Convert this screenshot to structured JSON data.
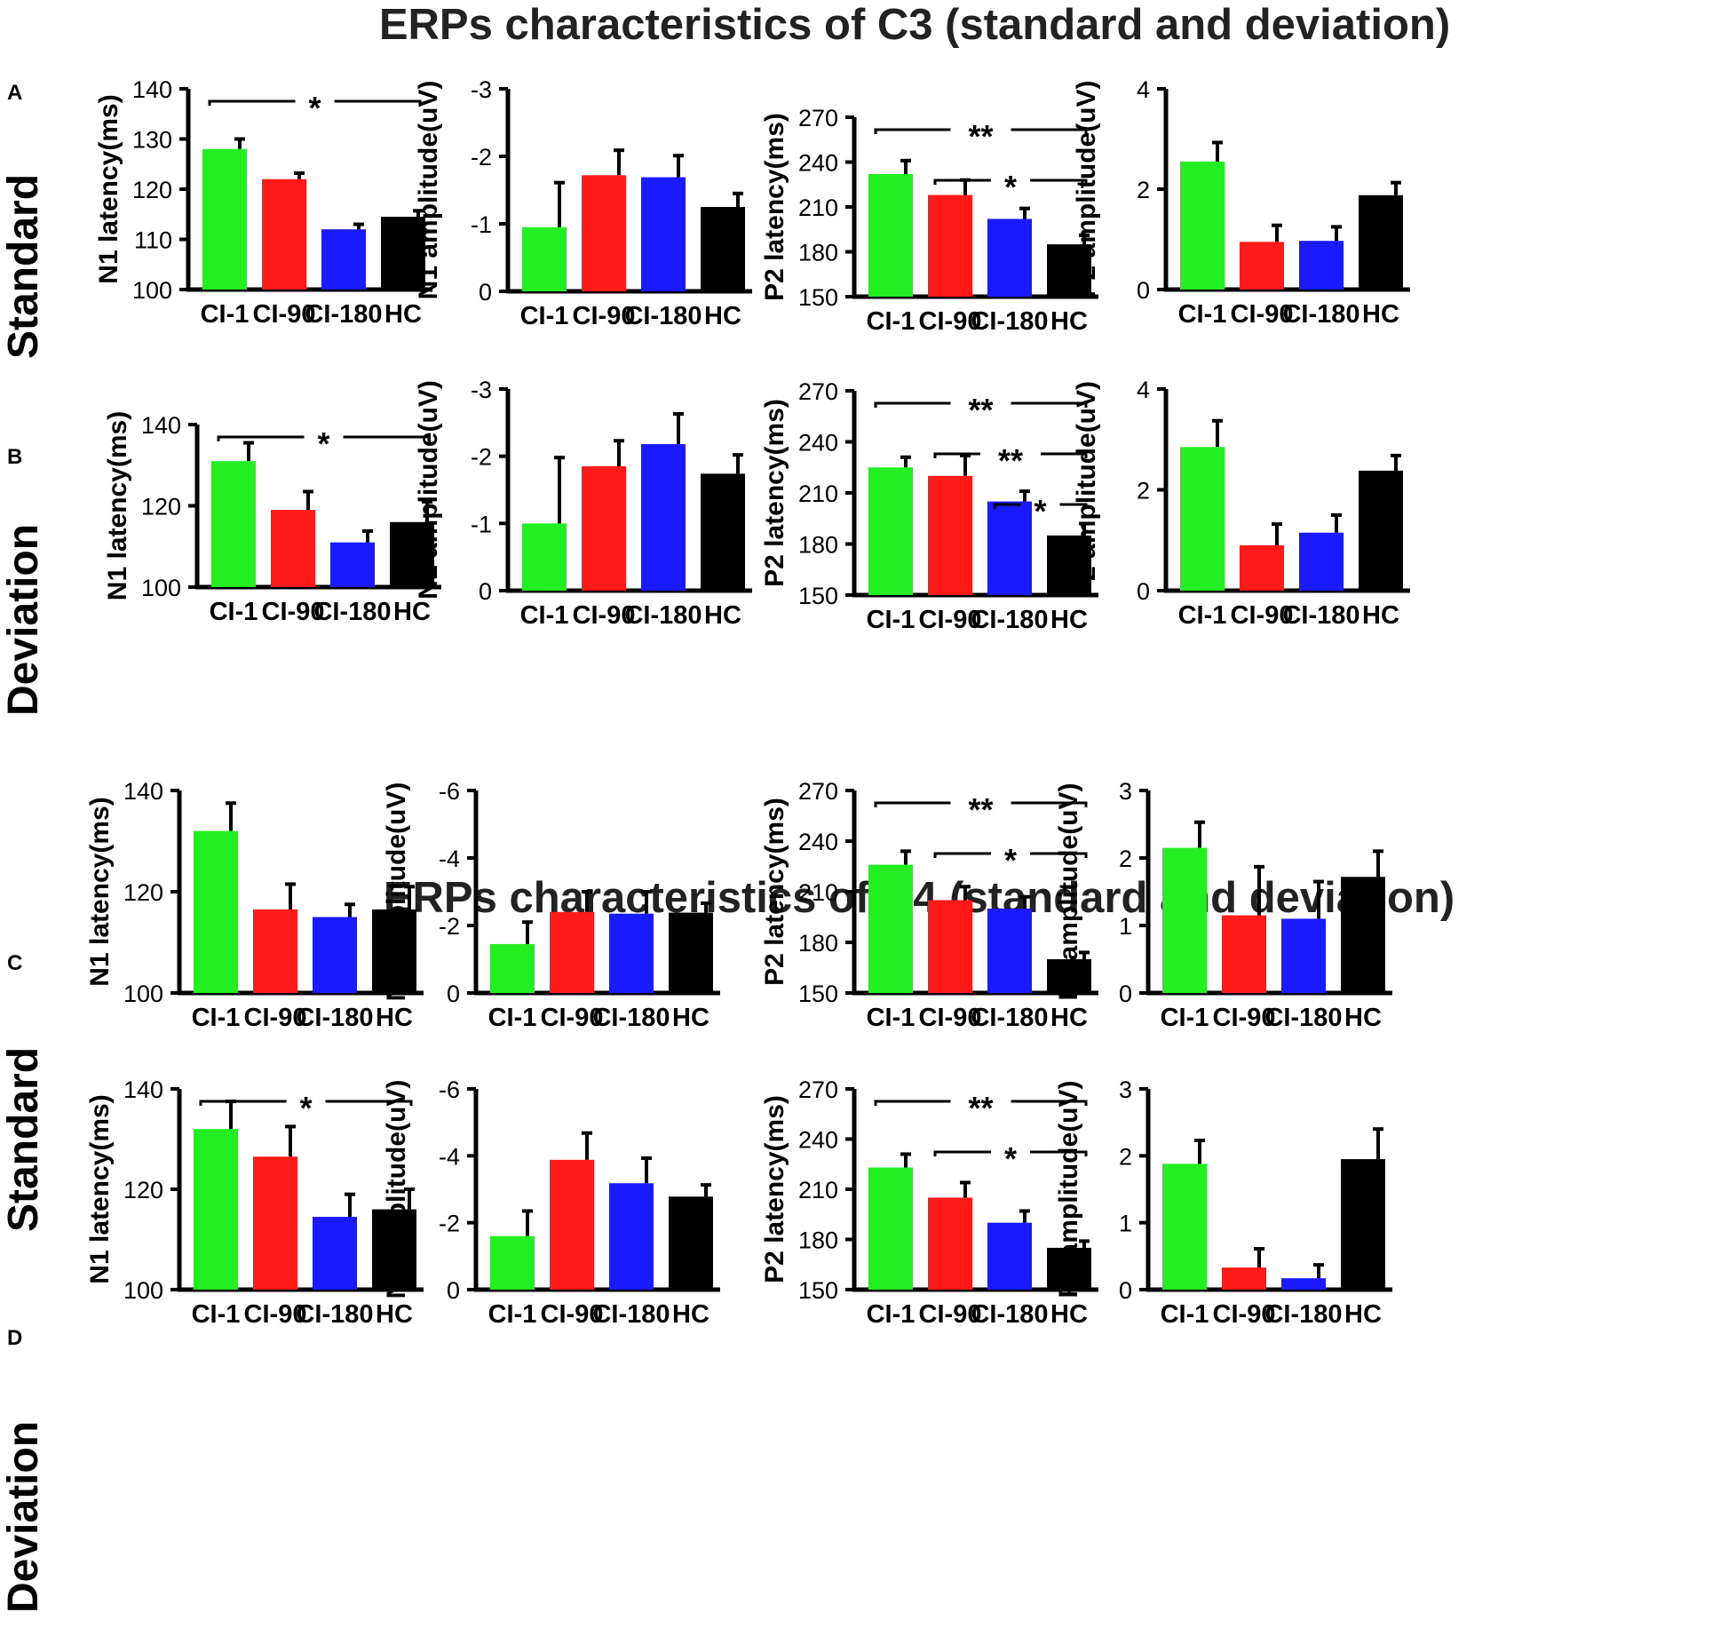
{
  "figure": {
    "section_titles": [
      "ERPs characteristics of C3 (standard and deviation)",
      "ERPs characteristics of C4 (standard and deviation)"
    ],
    "panel_letters": [
      "A",
      "B",
      "C",
      "D"
    ],
    "row_labels": [
      "Standard",
      "Deviation",
      "Standard",
      "Deviation"
    ],
    "groups": [
      "CI-1",
      "CI-90",
      "CI-180",
      "HC"
    ],
    "colors": {
      "CI-1": "#22ee22",
      "CI-90": "#ff1a1a",
      "CI-180": "#1a1aff",
      "HC": "#000000"
    }
  },
  "chart_data": [
    {
      "type": "bar",
      "row": "A",
      "title": "",
      "xlabel": "",
      "ylabel": "N1 latency(ms)",
      "categories": [
        "CI-1",
        "CI-90",
        "CI-180",
        "HC"
      ],
      "values": [
        128,
        122,
        112,
        114.5
      ],
      "errors": [
        2,
        1.2,
        1,
        1.2
      ],
      "ylim": [
        100,
        140
      ],
      "yticks": [
        100,
        110,
        120,
        130,
        140
      ],
      "yticklabels": [
        "100",
        "110",
        "120",
        "130",
        "140"
      ],
      "inverted": false,
      "significance": [
        {
          "from": "CI-1",
          "to": "HC",
          "label": "*"
        }
      ]
    },
    {
      "type": "bar",
      "row": "A",
      "title": "",
      "xlabel": "",
      "ylabel": "N1 amplitude(uV)",
      "categories": [
        "CI-1",
        "CI-90",
        "CI-180",
        "HC"
      ],
      "values": [
        -0.95,
        -1.72,
        -1.69,
        -1.25
      ],
      "errors": [
        0.66,
        0.37,
        0.32,
        0.2
      ],
      "ylim": [
        0,
        -3
      ],
      "yticks": [
        0,
        -1,
        -2,
        -3
      ],
      "yticklabels": [
        "0",
        "-1",
        "-2",
        "-3"
      ],
      "inverted": true,
      "significance": []
    },
    {
      "type": "bar",
      "row": "A",
      "title": "",
      "xlabel": "",
      "ylabel": "P2 latency(ms)",
      "categories": [
        "CI-1",
        "CI-90",
        "CI-180",
        "HC"
      ],
      "values": [
        232,
        218,
        202,
        185
      ],
      "errors": [
        9,
        10,
        7,
        6
      ],
      "ylim": [
        150,
        270
      ],
      "yticks": [
        150,
        180,
        210,
        240,
        270
      ],
      "yticklabels": [
        "150",
        "180",
        "210",
        "240",
        "270"
      ],
      "inverted": false,
      "significance": [
        {
          "from": "CI-1",
          "to": "HC",
          "label": "**"
        },
        {
          "from": "CI-90",
          "to": "HC",
          "label": "*"
        }
      ]
    },
    {
      "type": "bar",
      "row": "A",
      "title": "",
      "xlabel": "",
      "ylabel": "P2 amplitude(uV)",
      "categories": [
        "CI-1",
        "CI-90",
        "CI-180",
        "HC"
      ],
      "values": [
        2.55,
        0.95,
        0.97,
        1.88
      ],
      "errors": [
        0.38,
        0.33,
        0.28,
        0.25
      ],
      "ylim": [
        0,
        4
      ],
      "yticks": [
        0,
        2,
        4
      ],
      "yticklabels": [
        "0",
        "2",
        "4"
      ],
      "inverted": false,
      "significance": []
    },
    {
      "type": "bar",
      "row": "B",
      "title": "",
      "xlabel": "",
      "ylabel": "N1 latency(ms)",
      "categories": [
        "CI-1",
        "CI-90",
        "CI-180",
        "HC"
      ],
      "values": [
        131,
        119,
        111,
        116
      ],
      "errors": [
        4.5,
        4.5,
        2.8,
        5
      ],
      "ylim": [
        100,
        140
      ],
      "yticks": [
        100,
        120,
        140
      ],
      "yticklabels": [
        "100",
        "120",
        "140"
      ],
      "inverted": false,
      "significance": [
        {
          "from": "CI-1",
          "to": "HC",
          "label": "*"
        }
      ]
    },
    {
      "type": "bar",
      "row": "B",
      "title": "",
      "xlabel": "",
      "ylabel": "N1 amplitude(uV)",
      "categories": [
        "CI-1",
        "CI-90",
        "CI-180",
        "HC"
      ],
      "values": [
        -1.0,
        -1.85,
        -2.18,
        -1.74
      ],
      "errors": [
        0.98,
        0.38,
        0.45,
        0.28
      ],
      "ylim": [
        0,
        -3
      ],
      "yticks": [
        0,
        -1,
        -2,
        -3
      ],
      "yticklabels": [
        "0",
        "-1",
        "-2",
        "-3"
      ],
      "inverted": true,
      "significance": []
    },
    {
      "type": "bar",
      "row": "B",
      "title": "",
      "xlabel": "",
      "ylabel": "P2 latency(ms)",
      "categories": [
        "CI-1",
        "CI-90",
        "CI-180",
        "HC"
      ],
      "values": [
        225,
        220,
        205,
        185
      ],
      "errors": [
        6,
        12,
        6,
        7
      ],
      "ylim": [
        150,
        270
      ],
      "yticks": [
        150,
        180,
        210,
        240,
        270
      ],
      "yticklabels": [
        "150",
        "180",
        "210",
        "240",
        "270"
      ],
      "inverted": false,
      "significance": [
        {
          "from": "CI-1",
          "to": "HC",
          "label": "**"
        },
        {
          "from": "CI-90",
          "to": "HC",
          "label": "**"
        },
        {
          "from": "CI-180",
          "to": "HC",
          "label": "*"
        }
      ]
    },
    {
      "type": "bar",
      "row": "B",
      "title": "",
      "xlabel": "",
      "ylabel": "P2 amplitude(uV)",
      "categories": [
        "CI-1",
        "CI-90",
        "CI-180",
        "HC"
      ],
      "values": [
        2.85,
        0.9,
        1.15,
        2.38
      ],
      "errors": [
        0.52,
        0.42,
        0.35,
        0.3
      ],
      "ylim": [
        0,
        4
      ],
      "yticks": [
        0,
        2,
        4
      ],
      "yticklabels": [
        "0",
        "2",
        "4"
      ],
      "inverted": false,
      "significance": []
    },
    {
      "type": "bar",
      "row": "C",
      "title": "",
      "xlabel": "",
      "ylabel": "N1 latency(ms)",
      "categories": [
        "CI-1",
        "CI-90",
        "CI-180",
        "HC"
      ],
      "values": [
        132,
        116.5,
        115,
        116.5
      ],
      "errors": [
        5.5,
        5,
        2.5,
        4.5
      ],
      "ylim": [
        100,
        140
      ],
      "yticks": [
        100,
        120,
        140
      ],
      "yticklabels": [
        "100",
        "120",
        "140"
      ],
      "inverted": false,
      "significance": []
    },
    {
      "type": "bar",
      "row": "C",
      "title": "",
      "xlabel": "",
      "ylabel": "N1 amplitude(uV)",
      "categories": [
        "CI-1",
        "CI-90",
        "CI-180",
        "HC"
      ],
      "values": [
        -1.45,
        -2.4,
        -2.35,
        -2.38
      ],
      "errors": [
        0.65,
        0.6,
        0.65,
        0.28
      ],
      "ylim": [
        0,
        -6
      ],
      "yticks": [
        0,
        -2,
        -4,
        -6
      ],
      "yticklabels": [
        "0",
        "-2",
        "-4",
        "-6"
      ],
      "inverted": true,
      "significance": []
    },
    {
      "type": "bar",
      "row": "C",
      "title": "",
      "xlabel": "",
      "ylabel": "P2 latency(ms)",
      "categories": [
        "CI-1",
        "CI-90",
        "CI-180",
        "HC"
      ],
      "values": [
        226,
        205,
        200,
        170
      ],
      "errors": [
        8,
        8,
        7,
        4
      ],
      "ylim": [
        150,
        270
      ],
      "yticks": [
        150,
        180,
        210,
        240,
        270
      ],
      "yticklabels": [
        "150",
        "180",
        "210",
        "240",
        "270"
      ],
      "inverted": false,
      "significance": [
        {
          "from": "CI-1",
          "to": "HC",
          "label": "**"
        },
        {
          "from": "CI-90",
          "to": "HC",
          "label": "*"
        }
      ]
    },
    {
      "type": "bar",
      "row": "C",
      "title": "",
      "xlabel": "",
      "ylabel": "P2 amplitude(uV)",
      "categories": [
        "CI-1",
        "CI-90",
        "CI-180",
        "HC"
      ],
      "values": [
        2.15,
        1.15,
        1.1,
        1.72
      ],
      "errors": [
        0.38,
        0.72,
        0.55,
        0.38
      ],
      "ylim": [
        0,
        3
      ],
      "yticks": [
        0,
        1,
        2,
        3
      ],
      "yticklabels": [
        "0",
        "1",
        "2",
        "3"
      ],
      "inverted": false,
      "significance": []
    },
    {
      "type": "bar",
      "row": "D",
      "title": "",
      "xlabel": "",
      "ylabel": "N1 latency(ms)",
      "categories": [
        "CI-1",
        "CI-90",
        "CI-180",
        "HC"
      ],
      "values": [
        132,
        126.5,
        114.5,
        116
      ],
      "errors": [
        5.5,
        6,
        4.5,
        4
      ],
      "ylim": [
        100,
        140
      ],
      "yticks": [
        100,
        120,
        140
      ],
      "yticklabels": [
        "100",
        "120",
        "140"
      ],
      "inverted": false,
      "significance": [
        {
          "from": "CI-1",
          "to": "HC",
          "label": "*"
        }
      ]
    },
    {
      "type": "bar",
      "row": "D",
      "title": "",
      "xlabel": "",
      "ylabel": "N1 amplitude(uV)",
      "categories": [
        "CI-1",
        "CI-90",
        "CI-180",
        "HC"
      ],
      "values": [
        -1.6,
        -3.88,
        -3.18,
        -2.78
      ],
      "errors": [
        0.75,
        0.8,
        0.75,
        0.35
      ],
      "ylim": [
        0,
        -6
      ],
      "yticks": [
        0,
        -2,
        -4,
        -6
      ],
      "yticklabels": [
        "0",
        "-2",
        "-4",
        "-6"
      ],
      "inverted": true,
      "significance": []
    },
    {
      "type": "bar",
      "row": "D",
      "title": "",
      "xlabel": "",
      "ylabel": "P2 latency(ms)",
      "categories": [
        "CI-1",
        "CI-90",
        "CI-180",
        "HC"
      ],
      "values": [
        223,
        205,
        190,
        175
      ],
      "errors": [
        8,
        9,
        7,
        4
      ],
      "ylim": [
        150,
        270
      ],
      "yticks": [
        150,
        180,
        210,
        240,
        270
      ],
      "yticklabels": [
        "150",
        "180",
        "210",
        "240",
        "270"
      ],
      "inverted": false,
      "significance": [
        {
          "from": "CI-1",
          "to": "HC",
          "label": "**"
        },
        {
          "from": "CI-90",
          "to": "HC",
          "label": "*"
        }
      ]
    },
    {
      "type": "bar",
      "row": "D",
      "title": "",
      "xlabel": "",
      "ylabel": "P2 amplitude(uV)",
      "categories": [
        "CI-1",
        "CI-90",
        "CI-180",
        "HC"
      ],
      "values": [
        1.88,
        0.33,
        0.17,
        1.95
      ],
      "errors": [
        0.35,
        0.28,
        0.2,
        0.45
      ],
      "ylim": [
        0,
        3
      ],
      "yticks": [
        0,
        1,
        2,
        3
      ],
      "yticklabels": [
        "0",
        "1",
        "2",
        "3"
      ],
      "inverted": false,
      "significance": []
    }
  ]
}
